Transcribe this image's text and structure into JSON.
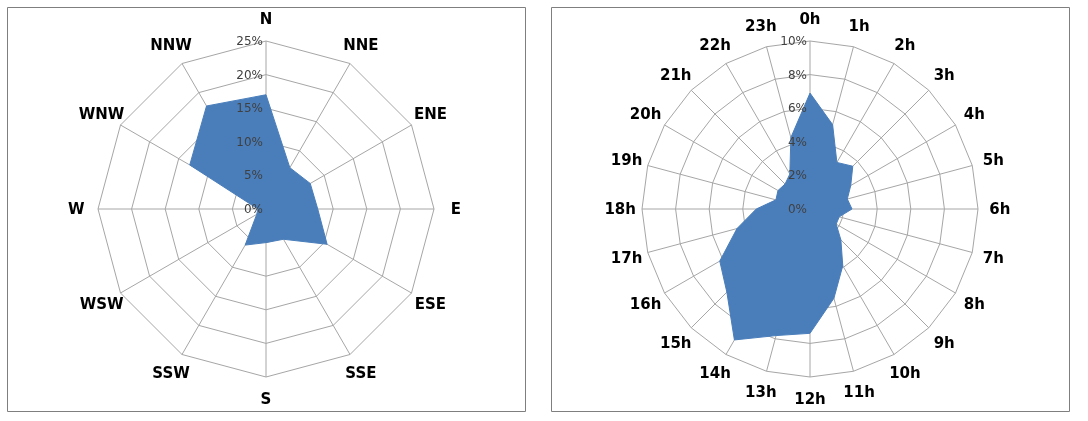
{
  "chart_data": [
    {
      "type": "radar",
      "categories": [
        "N",
        "NNE",
        "ENE",
        "E",
        "ESE",
        "SSE",
        "S",
        "SSW",
        "WSW",
        "W",
        "WNW",
        "NNW"
      ],
      "series": [
        {
          "color": "#4a7ebb",
          "values": [
            17,
            7.1,
            7.6,
            7.7,
            10.5,
            5.2,
            5,
            6.2,
            1.6,
            1.2,
            13.1,
            17.7
          ]
        }
      ],
      "ylim": [
        0,
        25
      ],
      "yticks": [
        {
          "value": 0,
          "label": "0%"
        },
        {
          "value": 5,
          "label": "5%"
        },
        {
          "value": 10,
          "label": "10%"
        },
        {
          "value": 15,
          "label": "15%"
        },
        {
          "value": 20,
          "label": "20%"
        },
        {
          "value": 25,
          "label": "25%"
        }
      ],
      "grid": true
    },
    {
      "type": "radar",
      "categories": [
        "0h",
        "1h",
        "2h",
        "3h",
        "4h",
        "5h",
        "6h",
        "7h",
        "8h",
        "9h",
        "10h",
        "11h",
        "12h",
        "13h",
        "14h",
        "15h",
        "16h",
        "17h",
        "18h",
        "19h",
        "20h",
        "21h",
        "22h",
        "23h"
      ],
      "series": [
        {
          "color": "#4a7ebb",
          "values": [
            6.9,
            5.2,
            3.2,
            3.6,
            2.8,
            2.3,
            2.5,
            1.8,
            1.8,
            2.6,
            3.9,
            5.5,
            7.4,
            7.8,
            9.0,
            7.0,
            6.2,
            4.5,
            3.2,
            2.1,
            2.2,
            2.1,
            2.4,
            4.4
          ]
        }
      ],
      "ylim": [
        0,
        10
      ],
      "yticks": [
        {
          "value": 0,
          "label": "0%"
        },
        {
          "value": 2,
          "label": "2%"
        },
        {
          "value": 4,
          "label": "4%"
        },
        {
          "value": 6,
          "label": "6%"
        },
        {
          "value": 8,
          "label": "8%"
        },
        {
          "value": 10,
          "label": "10%"
        }
      ],
      "grid": true
    }
  ]
}
